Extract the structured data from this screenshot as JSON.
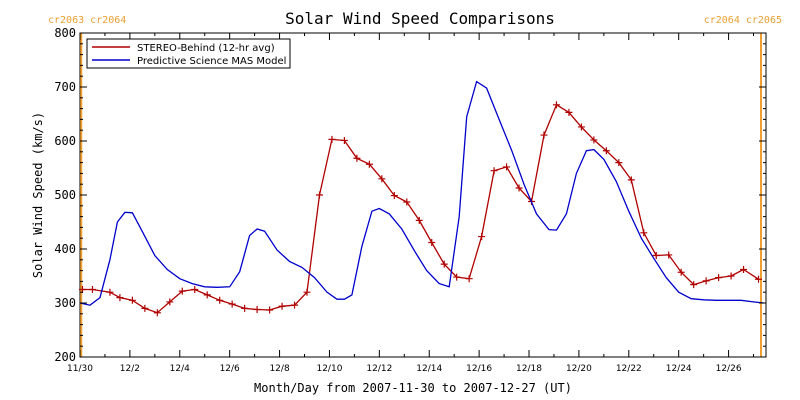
{
  "chart_data": {
    "type": "line",
    "title": "Solar Wind Speed Comparisons",
    "xlabel": "Month/Day from 2007-11-30 to 2007-12-27 (UT)",
    "ylabel": "Solar Wind Speed (km/s)",
    "xlim": [
      0,
      27.5
    ],
    "ylim": [
      200,
      800
    ],
    "x_ticks": [
      {
        "x": 0,
        "label": "11/30"
      },
      {
        "x": 2,
        "label": "12/2"
      },
      {
        "x": 4,
        "label": "12/4"
      },
      {
        "x": 6,
        "label": "12/6"
      },
      {
        "x": 8,
        "label": "12/8"
      },
      {
        "x": 10,
        "label": "12/10"
      },
      {
        "x": 12,
        "label": "12/12"
      },
      {
        "x": 14,
        "label": "12/14"
      },
      {
        "x": 16,
        "label": "12/16"
      },
      {
        "x": 18,
        "label": "12/18"
      },
      {
        "x": 20,
        "label": "12/20"
      },
      {
        "x": 22,
        "label": "12/22"
      },
      {
        "x": 24,
        "label": "12/24"
      },
      {
        "x": 26,
        "label": "12/26"
      }
    ],
    "y_ticks": [
      200,
      300,
      400,
      500,
      600,
      700,
      800
    ],
    "legend_position": "top-left",
    "carrington_markers": [
      {
        "x": 0.05,
        "label": "cr2063 cr2064",
        "side": "left"
      },
      {
        "x": 27.3,
        "label": "cr2064 cr2065",
        "side": "right"
      }
    ],
    "series": [
      {
        "name": "STEREO-Behind (12-hr avg)",
        "color": "#b00000",
        "markers": true,
        "points": [
          [
            0.1,
            325
          ],
          [
            0.5,
            325
          ],
          [
            1.2,
            320
          ],
          [
            1.6,
            310
          ],
          [
            2.1,
            305
          ],
          [
            2.6,
            290
          ],
          [
            3.1,
            282
          ],
          [
            3.6,
            302
          ],
          [
            4.1,
            322
          ],
          [
            4.6,
            325
          ],
          [
            5.1,
            315
          ],
          [
            5.6,
            305
          ],
          [
            6.1,
            298
          ],
          [
            6.6,
            290
          ],
          [
            7.1,
            288
          ],
          [
            7.6,
            287
          ],
          [
            8.1,
            294
          ],
          [
            8.6,
            296
          ],
          [
            9.1,
            320
          ],
          [
            9.6,
            500
          ],
          [
            10.1,
            603
          ],
          [
            10.6,
            601
          ],
          [
            11.1,
            568
          ],
          [
            11.6,
            557
          ],
          [
            12.1,
            530
          ],
          [
            12.6,
            499
          ],
          [
            13.1,
            487
          ],
          [
            13.6,
            453
          ],
          [
            14.1,
            412
          ],
          [
            14.6,
            372
          ],
          [
            15.1,
            348
          ],
          [
            15.6,
            345
          ],
          [
            16.1,
            423
          ],
          [
            16.6,
            545
          ],
          [
            17.1,
            552
          ],
          [
            17.6,
            513
          ],
          [
            18.1,
            488
          ],
          [
            18.6,
            611
          ],
          [
            19.1,
            667
          ],
          [
            19.6,
            653
          ],
          [
            20.1,
            626
          ],
          [
            20.6,
            602
          ],
          [
            21.1,
            582
          ],
          [
            21.6,
            560
          ],
          [
            22.1,
            528
          ],
          [
            22.6,
            430
          ],
          [
            23.1,
            388
          ],
          [
            23.6,
            389
          ],
          [
            24.1,
            357
          ],
          [
            24.6,
            334
          ],
          [
            25.1,
            341
          ],
          [
            25.6,
            347
          ],
          [
            26.1,
            350
          ],
          [
            26.6,
            362
          ],
          [
            27.2,
            344
          ]
        ]
      },
      {
        "name": "Predictive Science MAS Model",
        "color": "#0000cc",
        "markers": false,
        "points": [
          [
            0,
            300
          ],
          [
            0.4,
            296
          ],
          [
            0.8,
            310
          ],
          [
            1.2,
            380
          ],
          [
            1.5,
            450
          ],
          [
            1.8,
            468
          ],
          [
            2.1,
            467
          ],
          [
            2.5,
            432
          ],
          [
            3.0,
            388
          ],
          [
            3.5,
            362
          ],
          [
            4.0,
            345
          ],
          [
            4.5,
            336
          ],
          [
            5.0,
            330
          ],
          [
            5.5,
            329
          ],
          [
            6.0,
            330
          ],
          [
            6.4,
            358
          ],
          [
            6.8,
            425
          ],
          [
            7.1,
            437
          ],
          [
            7.4,
            433
          ],
          [
            7.9,
            398
          ],
          [
            8.4,
            377
          ],
          [
            8.9,
            366
          ],
          [
            9.4,
            347
          ],
          [
            9.9,
            320
          ],
          [
            10.3,
            307
          ],
          [
            10.6,
            307
          ],
          [
            10.9,
            315
          ],
          [
            11.3,
            405
          ],
          [
            11.7,
            470
          ],
          [
            12.0,
            475
          ],
          [
            12.4,
            465
          ],
          [
            12.9,
            437
          ],
          [
            13.4,
            397
          ],
          [
            13.9,
            360
          ],
          [
            14.4,
            336
          ],
          [
            14.8,
            330
          ],
          [
            15.2,
            460
          ],
          [
            15.5,
            645
          ],
          [
            15.9,
            710
          ],
          [
            16.3,
            698
          ],
          [
            16.8,
            640
          ],
          [
            17.3,
            583
          ],
          [
            17.8,
            520
          ],
          [
            18.3,
            465
          ],
          [
            18.8,
            436
          ],
          [
            19.1,
            435
          ],
          [
            19.5,
            465
          ],
          [
            19.9,
            540
          ],
          [
            20.3,
            582
          ],
          [
            20.6,
            584
          ],
          [
            21.0,
            566
          ],
          [
            21.5,
            525
          ],
          [
            22.0,
            470
          ],
          [
            22.5,
            420
          ],
          [
            23.0,
            383
          ],
          [
            23.5,
            347
          ],
          [
            24.0,
            320
          ],
          [
            24.5,
            308
          ],
          [
            25.0,
            306
          ],
          [
            25.5,
            305
          ],
          [
            26.0,
            305
          ],
          [
            26.5,
            305
          ],
          [
            27.0,
            302
          ],
          [
            27.4,
            300
          ]
        ]
      }
    ]
  }
}
